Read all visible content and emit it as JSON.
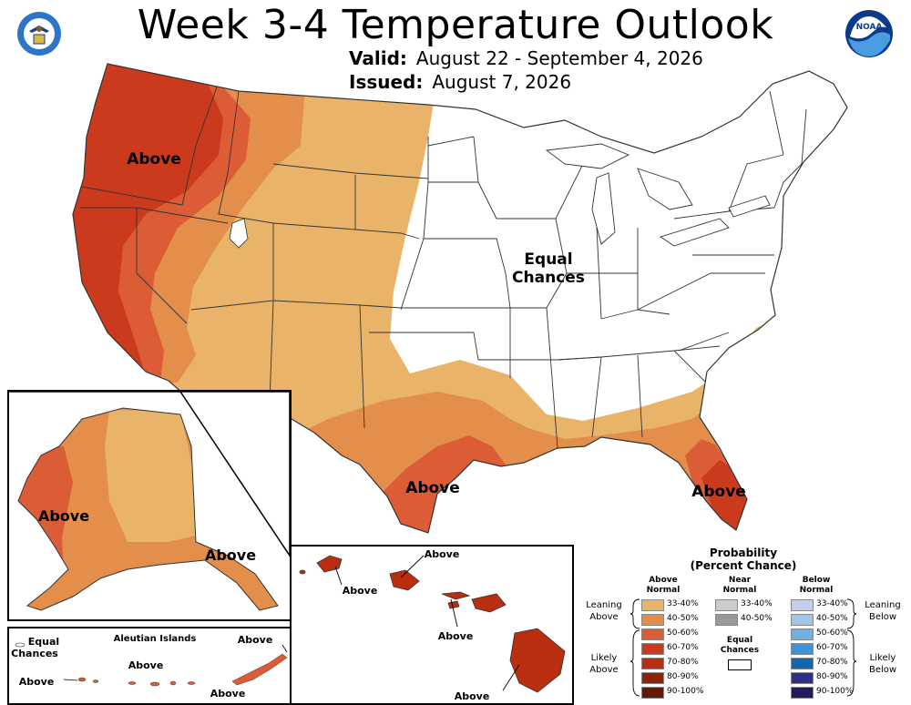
{
  "header": {
    "title": "Week 3-4 Temperature Outlook",
    "valid_label": "Valid:",
    "valid_value": "August 22 - September 4, 2026",
    "issued_label": "Issued:",
    "issued_value": "August 7, 2026",
    "left_logo": "doc-seal-icon",
    "right_logo": "noaa-logo-icon"
  },
  "map_labels": {
    "northwest": "Above",
    "texas": "Above",
    "florida": "Above",
    "equal_chances_line1": "Equal",
    "equal_chances_line2": "Chances",
    "alaska": "Above",
    "alaska_southeast": "Above",
    "aleutian_title": "Aleutian Islands",
    "aleutian_ec_line1": "Equal",
    "aleutian_ec_line2": "Chances",
    "aleutian_above_west": "Above",
    "aleutian_above_center": "Above",
    "aleutian_above_east_top": "Above",
    "aleutian_above_east_bottom": "Above",
    "hawaii_above_top": "Above",
    "hawaii_above_kauai": "Above",
    "hawaii_above_maui": "Above",
    "hawaii_above_big_island": "Above"
  },
  "colors": {
    "above_33_40": "#E9B46A",
    "above_40_50": "#E38E4A",
    "above_50_60": "#DC5C35",
    "above_60_70": "#CC3A1D",
    "above_70_80": "#B92E0E",
    "above_80_90": "#8E2406",
    "above_90_100": "#641703",
    "near_33_40": "#CCCCCC",
    "near_40_50": "#999999",
    "below_33_40": "#C4CEEA",
    "below_40_50": "#A1C5E8",
    "below_50_60": "#6FB0E2",
    "below_60_70": "#3B94D6",
    "below_70_80": "#0F67B1",
    "below_80_90": "#2E2F87",
    "below_90_100": "#231A5E"
  },
  "legend": {
    "title_line1": "Probability",
    "title_line2": "(Percent Chance)",
    "above_head_line1": "Above",
    "above_head_line2": "Normal",
    "near_head_line1": "Near",
    "near_head_line2": "Normal",
    "below_head_line1": "Below",
    "below_head_line2": "Normal",
    "above_items": [
      "33-40%",
      "40-50%",
      "50-60%",
      "60-70%",
      "70-80%",
      "80-90%",
      "90-100%"
    ],
    "near_items": [
      "33-40%",
      "40-50%"
    ],
    "below_items": [
      "33-40%",
      "40-50%",
      "50-60%",
      "60-70%",
      "70-80%",
      "80-90%",
      "90-100%"
    ],
    "equal_chances_line1": "Equal",
    "equal_chances_line2": "Chances",
    "leaning_above_line1": "Leaning",
    "leaning_above_line2": "Above",
    "likely_above_line1": "Likely",
    "likely_above_line2": "Above",
    "leaning_below_line1": "Leaning",
    "leaning_below_line2": "Below",
    "likely_below_line1": "Likely",
    "likely_below_line2": "Below"
  }
}
